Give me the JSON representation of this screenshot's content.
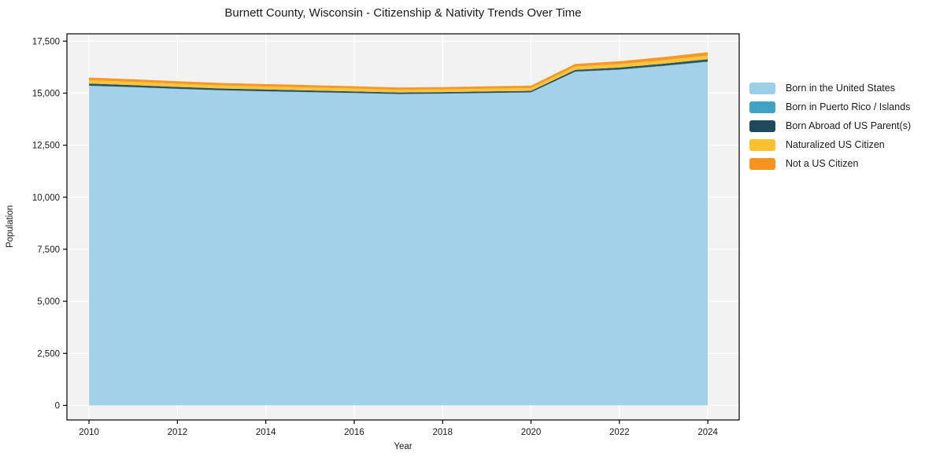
{
  "figure": {
    "background": "#ffffff"
  },
  "chart_data": {
    "type": "area",
    "stacked": true,
    "title": "Burnett County, Wisconsin - Citizenship & Nativity Trends Over Time",
    "xlabel": "Year",
    "ylabel": "Population",
    "x": [
      2010,
      2011,
      2012,
      2013,
      2014,
      2015,
      2016,
      2017,
      2018,
      2019,
      2020,
      2021,
      2022,
      2023,
      2024
    ],
    "series": [
      {
        "name": "Born in the United States",
        "color": "#9ecfe8",
        "values": [
          15350,
          15280,
          15200,
          15130,
          15080,
          15040,
          15000,
          14950,
          14970,
          15000,
          15030,
          16020,
          16120,
          16300,
          16500
        ]
      },
      {
        "name": "Born in Puerto Rico / Islands",
        "color": "#41a3c4",
        "values": [
          10,
          10,
          10,
          10,
          10,
          10,
          10,
          10,
          10,
          10,
          10,
          15,
          15,
          15,
          20
        ]
      },
      {
        "name": "Born Abroad of US Parent(s)",
        "color": "#1f4a5c",
        "values": [
          100,
          95,
          90,
          85,
          85,
          80,
          75,
          70,
          70,
          70,
          70,
          90,
          95,
          100,
          105
        ]
      },
      {
        "name": "Naturalized US Citizen",
        "color": "#fcc22d",
        "values": [
          160,
          155,
          150,
          145,
          140,
          140,
          135,
          130,
          130,
          135,
          135,
          150,
          160,
          170,
          180
        ]
      },
      {
        "name": "Not a US Citizen",
        "color": "#f7941f",
        "values": [
          130,
          130,
          125,
          120,
          120,
          115,
          115,
          110,
          110,
          110,
          115,
          130,
          140,
          150,
          160
        ]
      }
    ],
    "xticks": [
      2010,
      2012,
      2014,
      2016,
      2018,
      2020,
      2022,
      2024
    ],
    "yticks": [
      0,
      2500,
      5000,
      7500,
      10000,
      12500,
      15000,
      17500
    ],
    "xlim": [
      2009.5,
      2024.71
    ],
    "ylim": [
      -700,
      17850
    ],
    "grid": true,
    "plot_bg": "#f2f2f2",
    "grid_color": "#ffffff",
    "axis_color": "#000000",
    "text_color": "#1a1a1a",
    "legend_position": "right"
  }
}
